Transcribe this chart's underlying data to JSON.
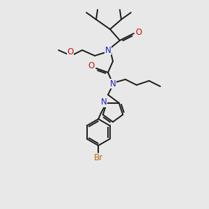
{
  "background_color": "#e8e8e8",
  "bond_color": "#1a1a1a",
  "N_color": "#2020bb",
  "O_color": "#cc1111",
  "Br_color": "#bb6600",
  "lw": 1.4,
  "fs": 8.5,
  "fig_w": 3.0,
  "fig_h": 3.0,
  "dpi": 100,
  "xlim": [
    0,
    300
  ],
  "ylim": [
    0,
    300
  ]
}
